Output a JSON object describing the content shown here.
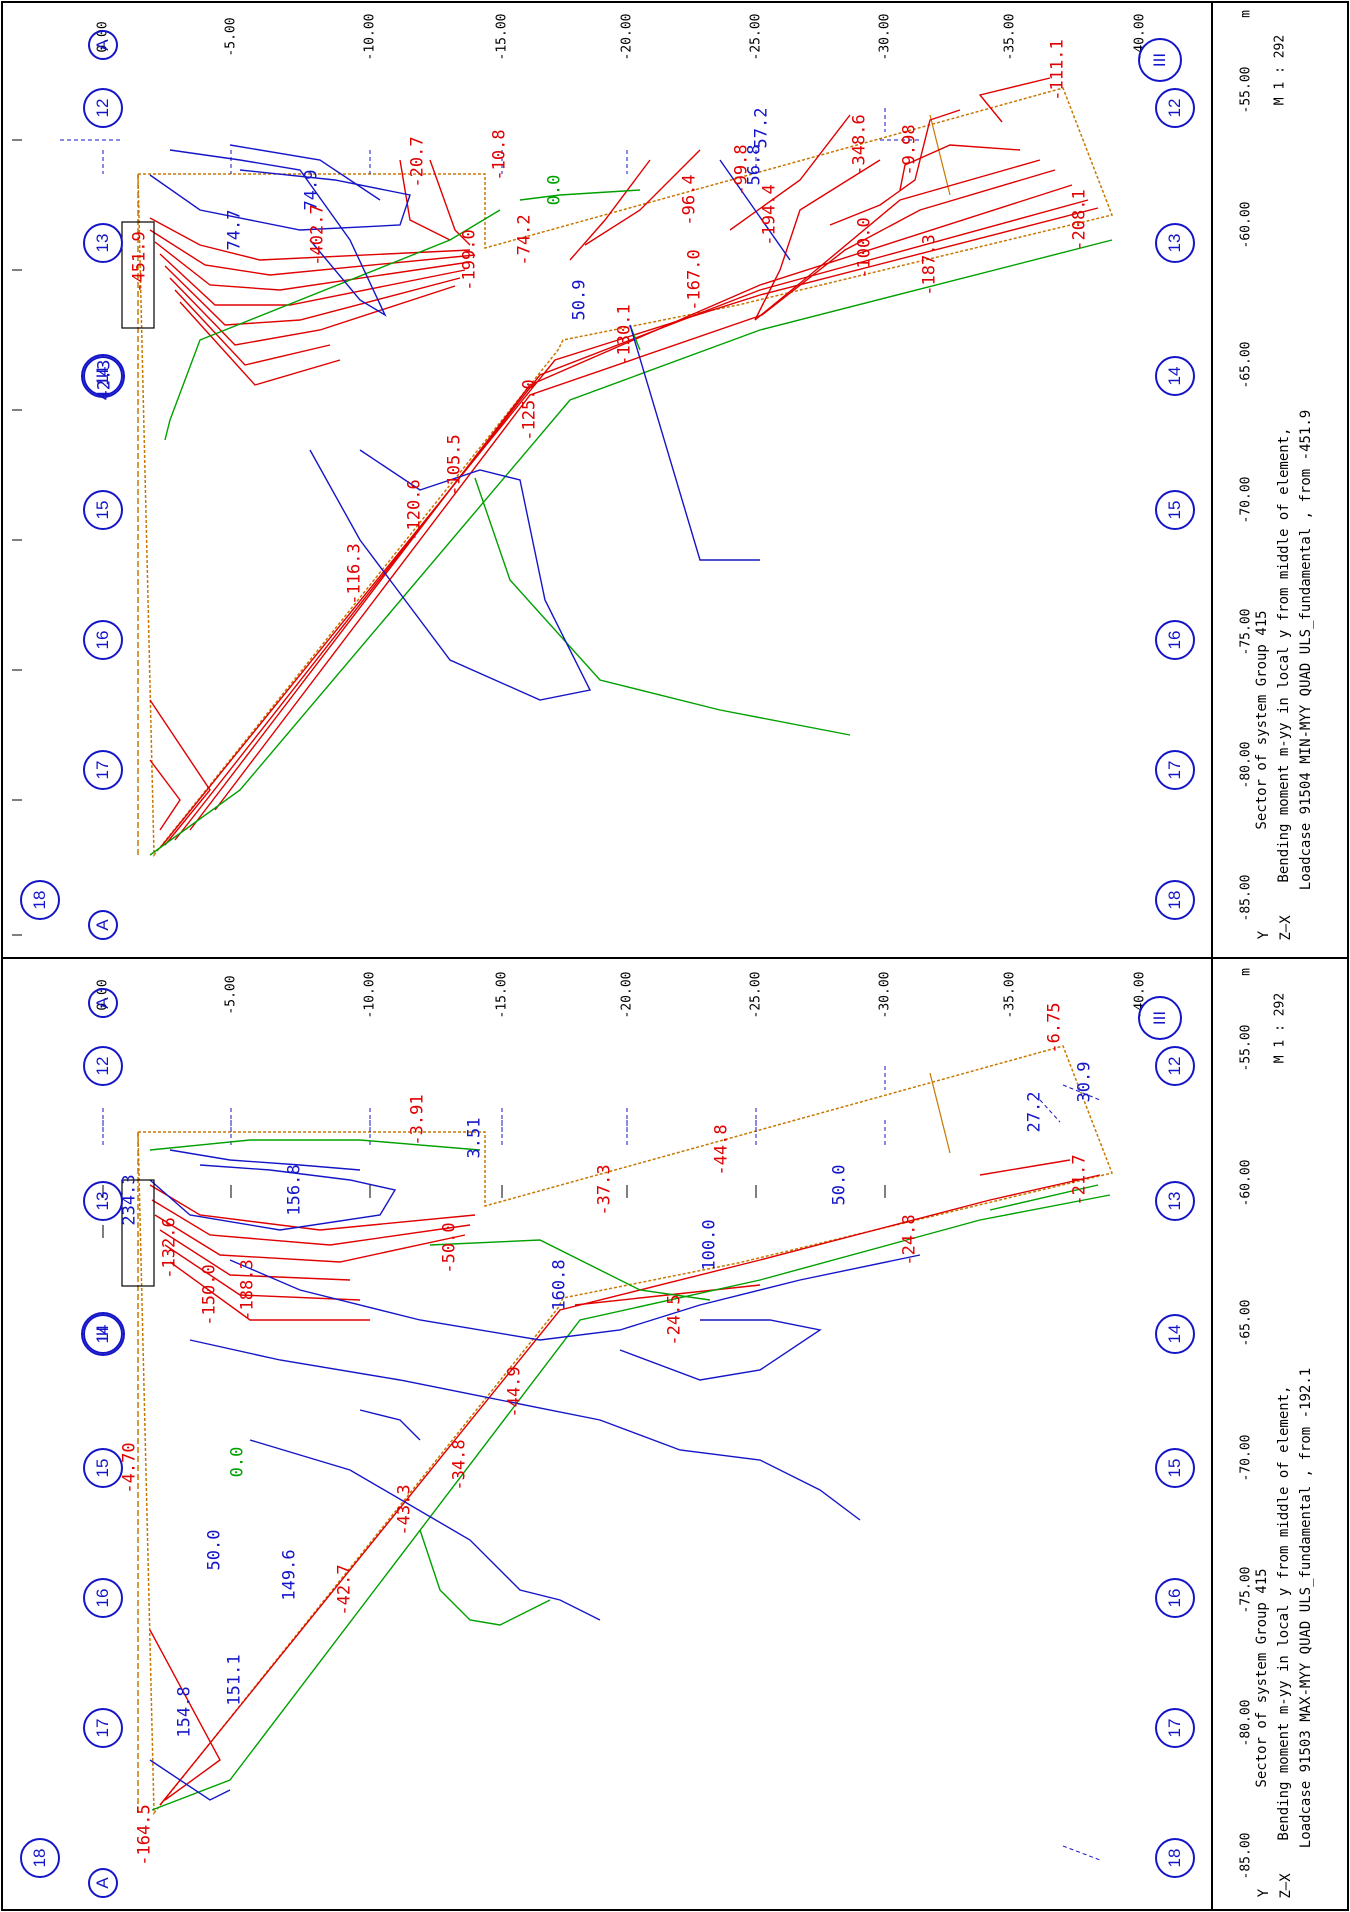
{
  "axis_unit": "m",
  "scale": "M 1 : 292",
  "y_ticks": [
    "0.00",
    "-5.00",
    "-10.00",
    "-15.00",
    "-20.00",
    "-25.00",
    "-30.00",
    "-35.00",
    "-40.00"
  ],
  "x_ticks": [
    "-55.00",
    "-60.00",
    "-65.00",
    "-70.00",
    "-75.00",
    "-80.00",
    "-85.00"
  ],
  "grid_bottom": [
    "12",
    "13",
    "14",
    "15",
    "16",
    "17",
    "18"
  ],
  "grid_top": [
    "12",
    "13",
    "14",
    "15",
    "16",
    "17",
    "18"
  ],
  "grid_A": "A",
  "grid_III": "III",
  "axes_glyph": {
    "y": "Y",
    "zx": "Z—X"
  },
  "panels": [
    {
      "caption": {
        "line1": "Sector of system Group 415",
        "line2": "Bending moment m-yy in local y from middle of element,",
        "line3": "Loadcase 91504  MIN-MYY QUAD ULS_fundamental    , from -451.9"
      },
      "labels": [
        {
          "t": "-111.1",
          "c": "red"
        },
        {
          "t": "-9.98",
          "c": "red"
        },
        {
          "t": "-99.8",
          "c": "red"
        },
        {
          "t": "-96.4",
          "c": "red"
        },
        {
          "t": "-20.7",
          "c": "red"
        },
        {
          "t": "-208.1",
          "c": "red"
        },
        {
          "t": "-187.3",
          "c": "red"
        },
        {
          "t": "-100.0",
          "c": "red"
        },
        {
          "t": "-74.2",
          "c": "red"
        },
        {
          "t": "-199.0",
          "c": "red"
        },
        {
          "t": "74.9",
          "c": "blue"
        },
        {
          "t": "74.7",
          "c": "blue"
        },
        {
          "t": "-451.9",
          "c": "red"
        },
        {
          "t": "-402.7",
          "c": "red"
        },
        {
          "t": "42.3",
          "c": "blue"
        },
        {
          "t": "-116.3",
          "c": "red"
        },
        {
          "t": "-120.6",
          "c": "red"
        },
        {
          "t": "-105.5",
          "c": "red"
        },
        {
          "t": "-10.8",
          "c": "red"
        },
        {
          "t": "0.0",
          "c": "green"
        },
        {
          "t": "-125.0",
          "c": "red"
        },
        {
          "t": "50.9",
          "c": "blue"
        },
        {
          "t": "-130.1",
          "c": "red"
        },
        {
          "t": "-167.0",
          "c": "red"
        },
        {
          "t": "56.8",
          "c": "blue"
        },
        {
          "t": "57.2",
          "c": "blue"
        },
        {
          "t": "-194.4",
          "c": "red"
        },
        {
          "t": "-348.6",
          "c": "red"
        }
      ]
    },
    {
      "caption": {
        "line1": "Sector of system Group 415",
        "line2": "Bending moment m-yy in local y from middle of element,",
        "line3": "Loadcase 91503  MAX-MYY QUAD ULS_fundamental    , from -192.1"
      },
      "labels": [
        {
          "t": "-6.75",
          "c": "red"
        },
        {
          "t": "30.9",
          "c": "blue"
        },
        {
          "t": "27.2",
          "c": "blue"
        },
        {
          "t": "-21.7",
          "c": "red"
        },
        {
          "t": "-44.8",
          "c": "red"
        },
        {
          "t": "-24.8",
          "c": "red"
        },
        {
          "t": "50.0",
          "c": "blue"
        },
        {
          "t": "-37.3",
          "c": "red"
        },
        {
          "t": "100.0",
          "c": "blue"
        },
        {
          "t": "-3.91",
          "c": "red"
        },
        {
          "t": "3.51",
          "c": "blue"
        },
        {
          "t": "-24.5",
          "c": "red"
        },
        {
          "t": "234.3",
          "c": "blue"
        },
        {
          "t": "156.8",
          "c": "blue"
        },
        {
          "t": "-50.0",
          "c": "red"
        },
        {
          "t": "160.8",
          "c": "blue"
        },
        {
          "t": "-132.6",
          "c": "red"
        },
        {
          "t": "-150.0",
          "c": "red"
        },
        {
          "t": "-188.3",
          "c": "red"
        },
        {
          "t": "-44.9",
          "c": "red"
        },
        {
          "t": "-4.70",
          "c": "red"
        },
        {
          "t": "0.0",
          "c": "green"
        },
        {
          "t": "-34.8",
          "c": "red"
        },
        {
          "t": "-43.3",
          "c": "red"
        },
        {
          "t": "50.0",
          "c": "blue"
        },
        {
          "t": "149.6",
          "c": "blue"
        },
        {
          "t": "-42.7",
          "c": "red"
        },
        {
          "t": "151.1",
          "c": "blue"
        },
        {
          "t": "154.8",
          "c": "blue"
        },
        {
          "t": "-164.5",
          "c": "red"
        }
      ]
    }
  ],
  "colors": {
    "negative": "#e00000",
    "positive": "#1515c8",
    "zero": "#00a000",
    "outline": "#c87800",
    "grid": "#1515c8"
  }
}
